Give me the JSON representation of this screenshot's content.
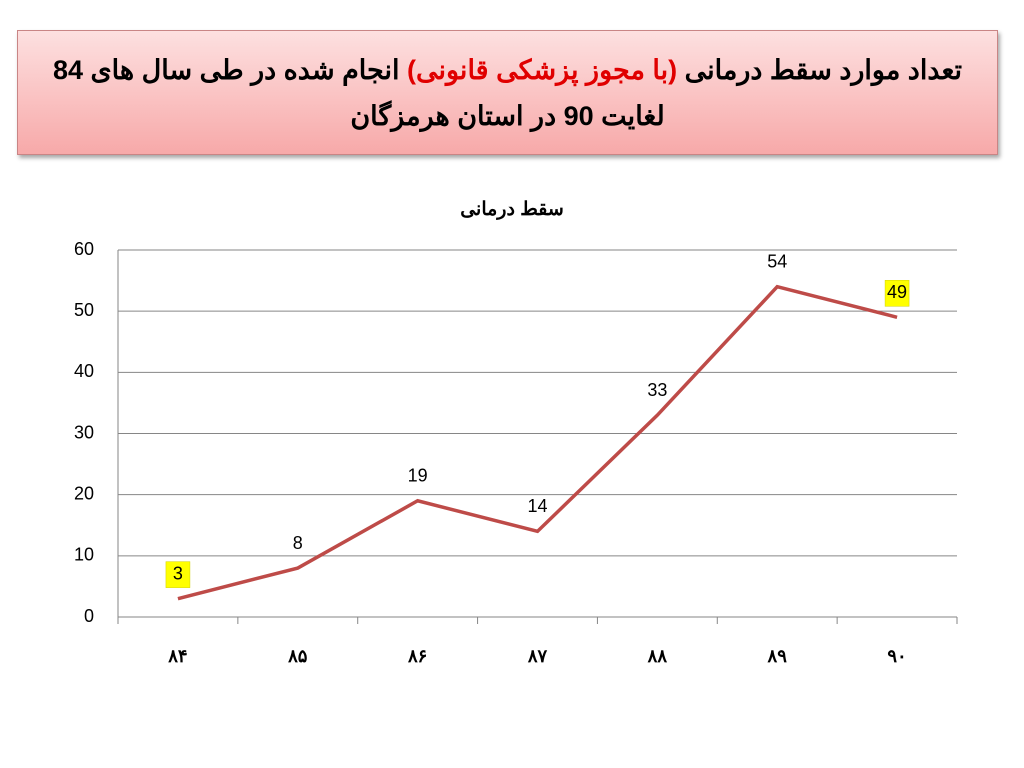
{
  "slide_title": [
    "تعداد موارد سقط درمانی ",
    "(با مجوز پزشکی قانونی)",
    " انجام شده در طی سال های 84 لغایت 90 در استان هرمزگان"
  ],
  "chart_data": {
    "type": "line",
    "title": "سقط درمانی",
    "categories": [
      "۸۴",
      "۸۵",
      "۸۶",
      "۸۷",
      "۸۸",
      "۸۹",
      "۹۰"
    ],
    "values": [
      3,
      8,
      19,
      14,
      33,
      54,
      49
    ],
    "color": "#be4b48",
    "ylim": [
      0,
      60
    ],
    "yticks": [
      0,
      10,
      20,
      30,
      40,
      50,
      60
    ],
    "grid": true,
    "highlighted_labels": [
      0,
      6
    ]
  }
}
